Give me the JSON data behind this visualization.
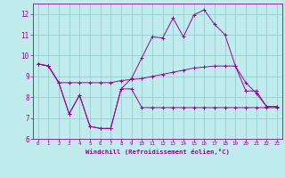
{
  "xlabel": "Windchill (Refroidissement éolien,°C)",
  "bg_color": "#c0ecee",
  "grid_color": "#96cdd0",
  "line_color": "#990099",
  "ylim": [
    6,
    12.5
  ],
  "xlim": [
    -0.5,
    23.5
  ],
  "yticks": [
    6,
    7,
    8,
    9,
    10,
    11,
    12
  ],
  "xticks": [
    0,
    1,
    2,
    3,
    4,
    5,
    6,
    7,
    8,
    9,
    10,
    11,
    12,
    13,
    14,
    15,
    16,
    17,
    18,
    19,
    20,
    21,
    22,
    23
  ],
  "line1_x": [
    0,
    1,
    2,
    3,
    4,
    5,
    6,
    7,
    8,
    9,
    10,
    11,
    12,
    13,
    14,
    15,
    16,
    17,
    18,
    19,
    20,
    21,
    22,
    23
  ],
  "line1_y": [
    9.6,
    9.5,
    8.7,
    7.2,
    8.1,
    6.6,
    6.5,
    6.5,
    8.4,
    8.4,
    7.5,
    7.5,
    7.5,
    7.5,
    7.5,
    7.5,
    7.5,
    7.5,
    7.5,
    7.5,
    7.5,
    7.5,
    7.5,
    7.5
  ],
  "line2_x": [
    0,
    1,
    2,
    3,
    4,
    5,
    6,
    7,
    8,
    9,
    10,
    11,
    12,
    13,
    14,
    15,
    16,
    17,
    18,
    19,
    20,
    21,
    22,
    23
  ],
  "line2_y": [
    9.6,
    9.5,
    8.7,
    7.2,
    8.1,
    6.6,
    6.5,
    6.5,
    8.4,
    8.9,
    9.9,
    10.9,
    10.85,
    11.8,
    10.9,
    11.95,
    12.2,
    11.5,
    11.0,
    9.5,
    8.3,
    8.3,
    7.55,
    7.55
  ],
  "line3_x": [
    0,
    1,
    2,
    3,
    4,
    5,
    6,
    7,
    8,
    9,
    10,
    11,
    12,
    13,
    14,
    15,
    16,
    17,
    18,
    19,
    20,
    21,
    22,
    23
  ],
  "line3_y": [
    9.6,
    9.5,
    8.7,
    8.7,
    8.7,
    8.7,
    8.7,
    8.7,
    8.8,
    8.85,
    8.9,
    9.0,
    9.1,
    9.2,
    9.3,
    9.4,
    9.45,
    9.5,
    9.5,
    9.5,
    8.7,
    8.2,
    7.55,
    7.55
  ]
}
